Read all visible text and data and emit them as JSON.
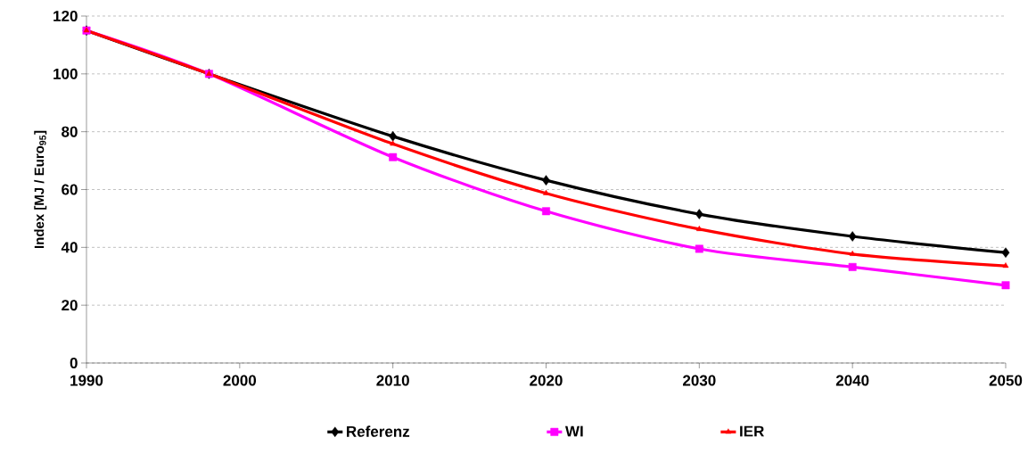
{
  "chart_data": {
    "type": "line",
    "ylabel": "Index [MJ / Euro$_{95}$]",
    "x": [
      1990,
      1998,
      2010,
      2020,
      2030,
      2040,
      2050
    ],
    "series": [
      {
        "name": "Referenz",
        "color": "#000000",
        "marker": "diamond",
        "values": [
          115,
          100,
          78.4,
          63.2,
          51.5,
          43.8,
          38.2
        ]
      },
      {
        "name": "WI",
        "color": "#ff00ff",
        "marker": "square",
        "values": [
          115,
          100,
          71.2,
          52.5,
          39.5,
          33.2,
          26.9
        ]
      },
      {
        "name": "IER",
        "color": "#ff0000",
        "marker": "triangle",
        "values": [
          115,
          100,
          75.8,
          58.7,
          46.3,
          37.7,
          33.6
        ]
      }
    ],
    "xlim": [
      1990,
      2050
    ],
    "xticks": [
      1990,
      2000,
      2010,
      2020,
      2030,
      2040,
      2050
    ],
    "ylim": [
      0,
      120
    ],
    "yticks": [
      0,
      20,
      40,
      60,
      80,
      100,
      120
    ],
    "grid": "y",
    "legend": "bottom",
    "line_style": "solid"
  }
}
